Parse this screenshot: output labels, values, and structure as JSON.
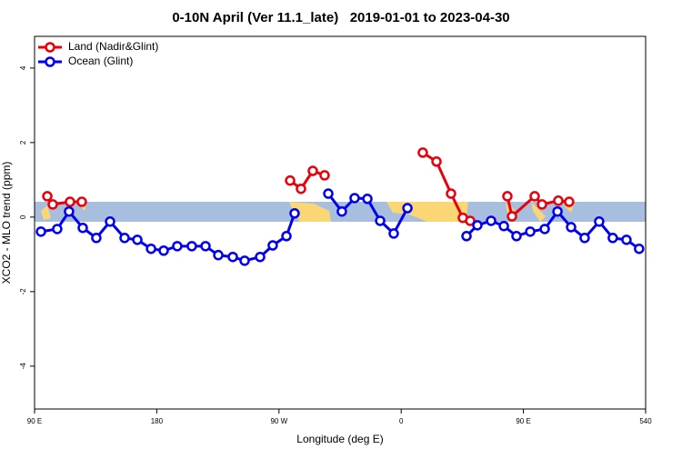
{
  "chart_data": {
    "type": "line",
    "title": "0-10N April (Ver 11.1_late)   2019-01-01 to 2023-04-30",
    "xlabel": "Longitude (deg E)",
    "ylabel": "XCO2 - MLO trend (ppm)",
    "xlim": [
      90,
      540
    ],
    "ylim": [
      -5.15,
      4.85
    ],
    "xticks": [
      {
        "value": 90,
        "label": "90 E"
      },
      180,
      {
        "value": 270,
        "label": "90 W"
      },
      {
        "value": 360,
        "label": "0"
      },
      {
        "value": 450,
        "label": "90 E"
      },
      540
    ],
    "yticks": [
      -4,
      -2,
      0,
      2,
      4
    ],
    "legend": "top-left",
    "series": [
      {
        "name": "Land (Nadir&Glint)",
        "color": "#e8000b",
        "x": [
          99.4,
          103.4,
          116.1,
          124.8,
          null,
          278.2,
          286.2,
          294.9,
          303.6,
          null,
          375.9,
          386,
          396.7,
          405.4,
          410.8,
          null,
          438.2,
          441.6,
          458.3,
          463.7,
          475.7,
          483.7
        ],
        "values": [
          0.56,
          0.34,
          0.41,
          0.41,
          null,
          0.98,
          0.76,
          1.24,
          1.12,
          null,
          1.73,
          1.49,
          0.63,
          -0.02,
          -0.1,
          null,
          0.56,
          0.02,
          0.56,
          0.34,
          0.44,
          0.41
        ]
      },
      {
        "name": "Ocean (Glint)",
        "color": "#0000ee",
        "x": [
          94.7,
          106.7,
          115.4,
          125.5,
          135.5,
          145.6,
          156.3,
          165.7,
          175.8,
          185.1,
          195.1,
          205.8,
          215.9,
          225.3,
          236,
          244.7,
          256.1,
          265.4,
          275.5,
          281.5,
          null,
          306.3,
          316.3,
          325.7,
          335.1,
          344.5,
          354.5,
          364.6,
          null,
          408.1,
          416.1,
          426.2,
          435.6,
          444.9,
          455,
          465.7,
          475.1,
          485.1,
          495.1,
          505.8,
          515.8,
          525.9,
          535.2
        ],
        "values": [
          -0.39,
          -0.32,
          0.15,
          -0.29,
          -0.56,
          -0.12,
          -0.56,
          -0.61,
          -0.85,
          -0.9,
          -0.78,
          -0.78,
          -0.78,
          -1.02,
          -1.07,
          -1.17,
          -1.07,
          -0.76,
          -0.51,
          0.1,
          null,
          0.63,
          0.15,
          0.51,
          0.49,
          -0.1,
          -0.44,
          0.24,
          null,
          -0.51,
          -0.22,
          -0.1,
          -0.24,
          -0.51,
          -0.39,
          -0.32,
          0.15,
          -0.27,
          -0.56,
          -0.12,
          -0.56,
          -0.61,
          -0.85
        ]
      }
    ]
  }
}
